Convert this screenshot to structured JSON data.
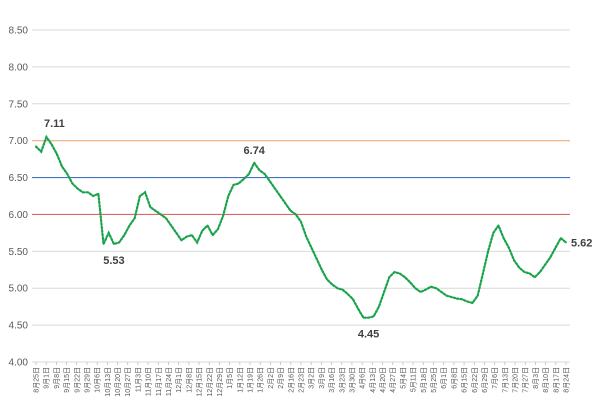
{
  "chart_data": {
    "type": "line",
    "title": "",
    "xlabel": "",
    "ylabel": "",
    "ylim": [
      4.0,
      8.5
    ],
    "yticks": [
      "4.00",
      "4.50",
      "5.00",
      "5.50",
      "6.00",
      "6.50",
      "7.00",
      "7.50",
      "8.00",
      "8.50"
    ],
    "grid": true,
    "legend": "none",
    "x_tick_labels": [
      "8月25日",
      "9月1日",
      "9月8日",
      "9月15日",
      "9月22日",
      "9月29日",
      "10月6日",
      "10月13日",
      "10月20日",
      "10月27日",
      "11月3日",
      "11月10日",
      "11月17日",
      "11月24日",
      "12月1日",
      "12月8日",
      "12月15日",
      "12月22日",
      "12月29日",
      "1月5日",
      "1月12日",
      "1月19日",
      "1月26日",
      "2月2日",
      "2月9日",
      "2月16日",
      "2月23日",
      "3月2日",
      "3月9日",
      "3月16日",
      "3月23日",
      "3月30日",
      "4月6日",
      "4月13日",
      "4月20日",
      "4月27日",
      "5月4日",
      "5月11日",
      "5月18日",
      "5月25日",
      "6月1日",
      "6月8日",
      "6月15日",
      "6月22日",
      "6月29日",
      "7月6日",
      "7月13日",
      "7月20日",
      "7月27日",
      "8月3日",
      "8月10日",
      "8月17日",
      "8月24日"
    ],
    "reference_lines": [
      {
        "value": 7.0,
        "color": "#f4b183"
      },
      {
        "value": 6.5,
        "color": "#4472c4"
      },
      {
        "value": 6.0,
        "color": "#e06666"
      }
    ],
    "series": [
      {
        "color": "#1aa34a",
        "line_style": "dotted",
        "values": [
          6.92,
          6.85,
          7.05,
          6.95,
          6.82,
          6.65,
          6.55,
          6.42,
          6.35,
          6.3,
          6.3,
          6.25,
          6.28,
          5.6,
          5.75,
          5.6,
          5.62,
          5.72,
          5.85,
          5.95,
          6.25,
          6.3,
          6.1,
          6.05,
          6.0,
          5.95,
          5.85,
          5.75,
          5.65,
          5.7,
          5.72,
          5.62,
          5.78,
          5.85,
          5.72,
          5.8,
          5.98,
          6.25,
          6.4,
          6.42,
          6.48,
          6.55,
          6.7,
          6.6,
          6.55,
          6.45,
          6.35,
          6.25,
          6.15,
          6.05,
          6.0,
          5.9,
          5.7,
          5.55,
          5.4,
          5.25,
          5.12,
          5.05,
          5.0,
          4.98,
          4.92,
          4.85,
          4.72,
          4.6,
          4.6,
          4.62,
          4.75,
          4.95,
          5.15,
          5.22,
          5.2,
          5.15,
          5.08,
          5.0,
          4.95,
          4.98,
          5.02,
          5.0,
          4.95,
          4.9,
          4.88,
          4.86,
          4.85,
          4.82,
          4.8,
          4.9,
          5.2,
          5.5,
          5.75,
          5.85,
          5.68,
          5.55,
          5.38,
          5.28,
          5.22,
          5.2,
          5.15,
          5.22,
          5.32,
          5.42,
          5.55,
          5.68,
          5.62
        ]
      }
    ],
    "annotations": [
      {
        "text": "7.11",
        "x_index": 2,
        "y": 7.05,
        "position": "above-right"
      },
      {
        "text": "5.53",
        "x_index": 15,
        "y": 5.6,
        "position": "below"
      },
      {
        "text": "6.74",
        "x_index": 42,
        "y": 6.7,
        "position": "above"
      },
      {
        "text": "4.45",
        "x_index": 64,
        "y": 4.6,
        "position": "below"
      },
      {
        "text": "5.62",
        "x_index": 102,
        "y": 5.62,
        "position": "right"
      }
    ]
  }
}
